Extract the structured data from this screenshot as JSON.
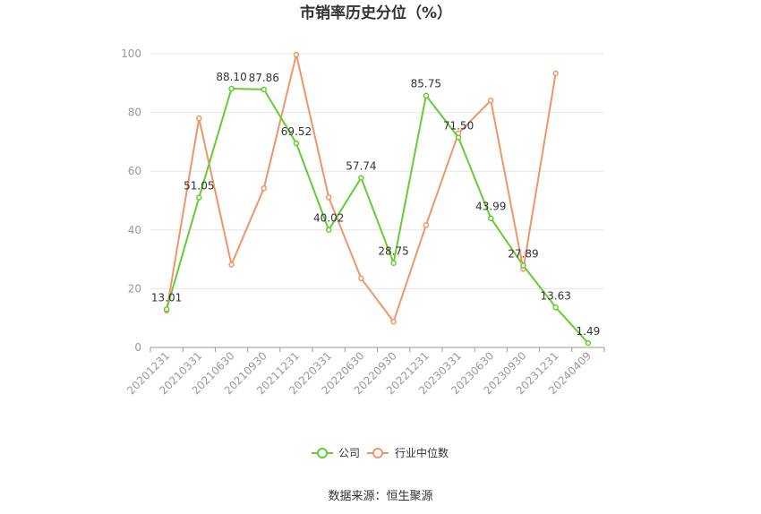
{
  "chart_data": {
    "type": "line",
    "title": "市销率历史分位（%）",
    "x": [
      "20201231",
      "20210331",
      "20210630",
      "20210930",
      "20211231",
      "20220331",
      "20220630",
      "20220930",
      "20221231",
      "20230331",
      "20230630",
      "20230930",
      "20231231",
      "20240409"
    ],
    "ylim": [
      0,
      100
    ],
    "yticks": [
      0,
      20,
      40,
      60,
      80,
      100
    ],
    "grid": true,
    "legend_position": "bottom",
    "series": [
      {
        "name": "公司",
        "color": "#66cc33",
        "values": [
          13.01,
          51.05,
          88.1,
          87.86,
          69.52,
          40.02,
          57.74,
          28.75,
          85.75,
          71.5,
          43.99,
          27.89,
          13.63,
          1.49
        ],
        "labels": [
          "13.01",
          "51.05",
          "88.10",
          "87.86",
          "69.52",
          "40.02",
          "57.74",
          "28.75",
          "85.75",
          "71.50",
          "43.99",
          "27.89",
          "13.63",
          "1.49"
        ]
      },
      {
        "name": "行业中位数",
        "color": "#f0956a",
        "values": [
          12.5,
          78.0,
          28.2,
          54.2,
          99.7,
          51.1,
          23.5,
          8.8,
          41.6,
          72.9,
          84.1,
          26.7,
          93.3,
          null
        ]
      }
    ],
    "source": "数据来源：恒生聚源"
  }
}
